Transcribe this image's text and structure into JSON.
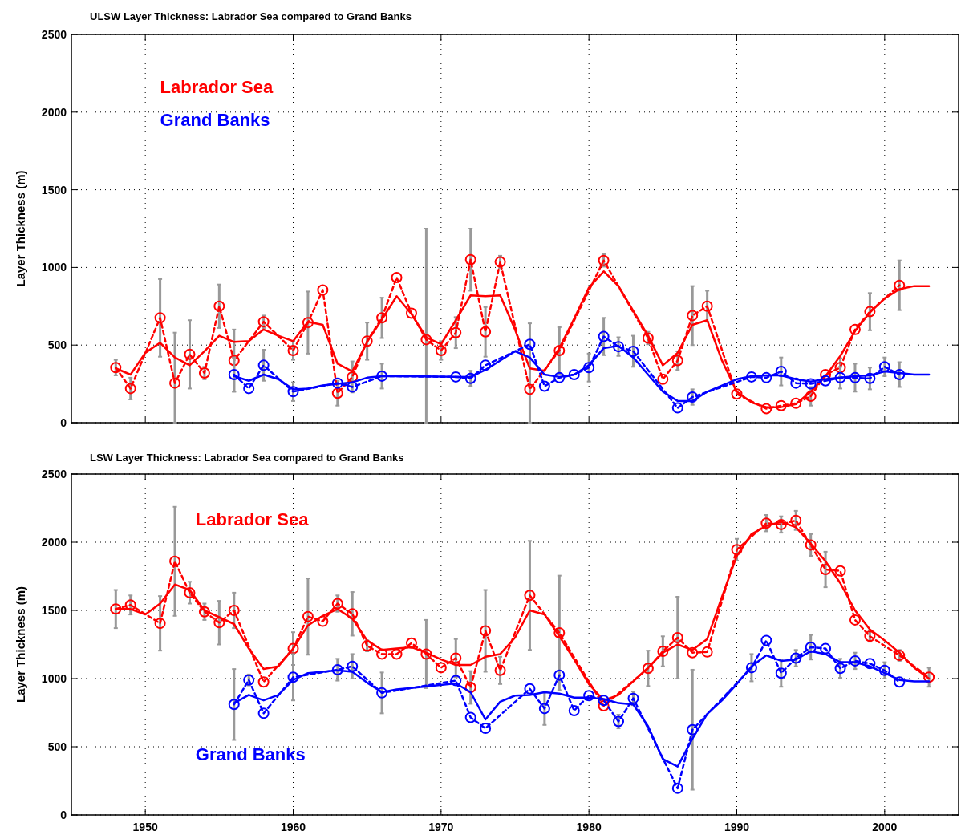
{
  "chart_data": [
    {
      "type": "line",
      "title": "ULSW Layer Thickness: Labrador Sea compared to Grand Banks",
      "ylabel": "Layer Thickness (m)",
      "xlim": [
        1945,
        2005
      ],
      "xticks": [
        1950,
        1960,
        1970,
        1980,
        1990,
        2000
      ],
      "ylim": [
        0,
        2500
      ],
      "yticks": [
        0,
        500,
        1000,
        1500,
        2000,
        2500
      ],
      "grid": true,
      "tick_labels": "y",
      "series": [
        {
          "name": "Labrador Sea",
          "color": "#ff0000",
          "marker": "circle",
          "line_style": "dashed",
          "x": [
            1948,
            1949,
            1951,
            1952,
            1953,
            1954,
            1955,
            1956,
            1958,
            1960,
            1961,
            1962,
            1963,
            1964,
            1965,
            1966,
            1967,
            1968,
            1969,
            1970,
            1971,
            1972,
            1973,
            1974,
            1976,
            1978,
            1981,
            1984,
            1985,
            1986,
            1987,
            1988,
            1990,
            1992,
            1993,
            1994,
            1995,
            1996,
            1997,
            1998,
            1999,
            2001
          ],
          "values": [
            355,
            220,
            675,
            255,
            440,
            320,
            750,
            400,
            650,
            465,
            645,
            855,
            190,
            295,
            525,
            675,
            935,
            705,
            535,
            465,
            580,
            1050,
            585,
            1035,
            215,
            465,
            1045,
            545,
            280,
            400,
            690,
            750,
            185,
            90,
            110,
            125,
            170,
            310,
            355,
            600,
            715,
            885
          ],
          "errors": [
            50,
            70,
            250,
            [
              0,
              580
            ],
            220,
            40,
            140,
            200,
            40,
            60,
            200,
            null,
            80,
            100,
            120,
            130,
            null,
            null,
            [
              0,
              1250
            ],
            60,
            100,
            200,
            160,
            40,
            [
              0,
              640
            ],
            150,
            40,
            40,
            null,
            60,
            190,
            100,
            null,
            null,
            null,
            null,
            60,
            null,
            60,
            null,
            120,
            160
          ]
        },
        {
          "color": "#ff0000",
          "marker": "none",
          "line_style": "solid",
          "x": [
            1948,
            1949,
            1950,
            1951,
            1952,
            1953,
            1954,
            1955,
            1956,
            1957,
            1958,
            1959,
            1960,
            1961,
            1962,
            1963,
            1964,
            1965,
            1966,
            1967,
            1968,
            1969,
            1970,
            1971,
            1972,
            1973,
            1974,
            1975,
            1976,
            1977,
            1978,
            1979,
            1980,
            1981,
            1982,
            1983,
            1984,
            1985,
            1986,
            1987,
            1988,
            1989,
            1990,
            1991,
            1992,
            1993,
            1994,
            1995,
            1996,
            1997,
            1998,
            1999,
            2000,
            2001,
            2002,
            2003
          ],
          "values": [
            350,
            310,
            450,
            515,
            420,
            370,
            460,
            560,
            520,
            525,
            600,
            560,
            525,
            650,
            630,
            380,
            330,
            520,
            665,
            815,
            700,
            550,
            505,
            660,
            820,
            815,
            820,
            600,
            350,
            335,
            480,
            670,
            870,
            975,
            880,
            720,
            560,
            370,
            450,
            630,
            660,
            400,
            200,
            130,
            100,
            100,
            120,
            200,
            300,
            430,
            590,
            710,
            800,
            860,
            880,
            880
          ]
        },
        {
          "name": "Grand Banks",
          "color": "#0000ff",
          "marker": "circle",
          "line_style": "dashed",
          "x": [
            1956,
            1957,
            1958,
            1960,
            1963,
            1964,
            1966,
            1971,
            1972,
            1973,
            1976,
            1977,
            1978,
            1979,
            1980,
            1981,
            1982,
            1983,
            1986,
            1987,
            1991,
            1992,
            1993,
            1994,
            1995,
            1996,
            1997,
            1998,
            1999,
            2000,
            2001
          ],
          "values": [
            310,
            220,
            370,
            200,
            255,
            230,
            300,
            295,
            285,
            370,
            505,
            235,
            290,
            310,
            355,
            555,
            490,
            460,
            95,
            165,
            295,
            290,
            330,
            255,
            250,
            270,
            290,
            290,
            285,
            360,
            310
          ],
          "errors": [
            110,
            null,
            100,
            60,
            null,
            null,
            80,
            null,
            50,
            null,
            null,
            null,
            null,
            null,
            90,
            120,
            60,
            100,
            null,
            50,
            null,
            null,
            90,
            null,
            null,
            null,
            70,
            90,
            70,
            60,
            80
          ]
        },
        {
          "color": "#0000ff",
          "marker": "none",
          "line_style": "solid",
          "x": [
            1956,
            1957,
            1958,
            1959,
            1960,
            1961,
            1962,
            1963,
            1964,
            1965,
            1966,
            1967,
            1972,
            1973,
            1974,
            1975,
            1976,
            1977,
            1978,
            1979,
            1980,
            1981,
            1982,
            1983,
            1984,
            1985,
            1986,
            1987,
            1988,
            1989,
            1990,
            1991,
            1992,
            1993,
            1994,
            1995,
            1996,
            1997,
            1998,
            1999,
            2000,
            2001,
            2002,
            2003
          ],
          "values": [
            300,
            270,
            310,
            280,
            215,
            220,
            240,
            250,
            260,
            290,
            300,
            300,
            295,
            340,
            400,
            460,
            420,
            310,
            295,
            310,
            370,
            480,
            495,
            420,
            310,
            200,
            140,
            140,
            200,
            240,
            280,
            300,
            305,
            305,
            280,
            265,
            280,
            290,
            300,
            305,
            330,
            320,
            310,
            310
          ]
        }
      ]
    },
    {
      "type": "line",
      "title": "LSW Layer Thickness: Labrador Sea compared to Grand Banks",
      "ylabel": "Layer Thickness (m)",
      "xlim": [
        1945,
        2005
      ],
      "xticks": [
        1950,
        1960,
        1970,
        1980,
        1990,
        2000
      ],
      "ylim": [
        0,
        2500
      ],
      "yticks": [
        0,
        500,
        1000,
        1500,
        2000,
        2500
      ],
      "grid": true,
      "series": [
        {
          "name": "Labrador Sea",
          "color": "#ff0000",
          "marker": "circle",
          "line_style": "dashed",
          "x": [
            1948,
            1949,
            1951,
            1952,
            1953,
            1954,
            1955,
            1956,
            1958,
            1960,
            1961,
            1962,
            1963,
            1964,
            1965,
            1966,
            1967,
            1968,
            1969,
            1970,
            1971,
            1972,
            1973,
            1974,
            1976,
            1978,
            1981,
            1984,
            1985,
            1986,
            1987,
            1988,
            1990,
            1992,
            1993,
            1994,
            1995,
            1996,
            1997,
            1998,
            1999,
            2001,
            2003
          ],
          "values": [
            1510,
            1540,
            1405,
            1860,
            1630,
            1490,
            1410,
            1500,
            975,
            1220,
            1455,
            1420,
            1550,
            1475,
            1240,
            1180,
            1180,
            1260,
            1180,
            1080,
            1150,
            935,
            1350,
            1060,
            1610,
            1335,
            800,
            1075,
            1200,
            1300,
            1190,
            1195,
            1945,
            2140,
            2130,
            2160,
            1980,
            1800,
            1790,
            1430,
            1310,
            1170,
            1010
          ],
          "errors": [
            140,
            70,
            200,
            400,
            80,
            60,
            160,
            130,
            null,
            120,
            280,
            null,
            60,
            160,
            40,
            null,
            null,
            null,
            250,
            null,
            140,
            120,
            300,
            100,
            400,
            420,
            null,
            130,
            110,
            300,
            null,
            null,
            80,
            60,
            60,
            70,
            80,
            130,
            null,
            null,
            40,
            40,
            70
          ]
        },
        {
          "color": "#ff0000",
          "marker": "none",
          "line_style": "solid",
          "x": [
            1948,
            1949,
            1950,
            1951,
            1952,
            1953,
            1954,
            1955,
            1956,
            1957,
            1958,
            1959,
            1960,
            1961,
            1962,
            1963,
            1964,
            1965,
            1966,
            1967,
            1968,
            1969,
            1970,
            1971,
            1972,
            1973,
            1974,
            1975,
            1976,
            1977,
            1978,
            1979,
            1980,
            1981,
            1982,
            1983,
            1984,
            1985,
            1986,
            1987,
            1988,
            1989,
            1990,
            1991,
            1992,
            1993,
            1994,
            1995,
            1996,
            1997,
            1998,
            1999,
            2000,
            2001,
            2002,
            2003
          ],
          "values": [
            1510,
            1510,
            1470,
            1550,
            1690,
            1650,
            1500,
            1450,
            1400,
            1220,
            1070,
            1090,
            1220,
            1390,
            1460,
            1510,
            1440,
            1280,
            1210,
            1220,
            1230,
            1190,
            1140,
            1100,
            1100,
            1160,
            1180,
            1300,
            1500,
            1470,
            1310,
            1140,
            960,
            840,
            880,
            980,
            1080,
            1190,
            1250,
            1210,
            1290,
            1600,
            1900,
            2060,
            2120,
            2150,
            2110,
            1990,
            1860,
            1700,
            1500,
            1360,
            1280,
            1190,
            1080,
            1000
          ]
        },
        {
          "name": "Grand Banks",
          "color": "#0000ff",
          "marker": "circle",
          "line_style": "dashed",
          "x": [
            1956,
            1957,
            1958,
            1960,
            1963,
            1964,
            1966,
            1971,
            1972,
            1973,
            1976,
            1977,
            1978,
            1979,
            1980,
            1981,
            1982,
            1983,
            1986,
            1987,
            1991,
            1992,
            1993,
            1994,
            1995,
            1996,
            1997,
            1998,
            1999,
            2000,
            2001
          ],
          "values": [
            810,
            990,
            745,
            1010,
            1065,
            1090,
            895,
            985,
            715,
            635,
            925,
            780,
            1025,
            765,
            875,
            840,
            685,
            855,
            195,
            625,
            1080,
            1280,
            1040,
            1150,
            1230,
            1220,
            1075,
            1130,
            1110,
            1060,
            975
          ],
          "errors": [
            260,
            40,
            null,
            170,
            80,
            90,
            150,
            null,
            null,
            null,
            null,
            120,
            null,
            null,
            null,
            null,
            50,
            50,
            null,
            440,
            100,
            null,
            100,
            60,
            90,
            null,
            70,
            60,
            null,
            60,
            null
          ]
        },
        {
          "color": "#0000ff",
          "marker": "none",
          "line_style": "solid",
          "x": [
            1956,
            1957,
            1958,
            1959,
            1960,
            1961,
            1962,
            1963,
            1964,
            1965,
            1966,
            1967,
            1971,
            1972,
            1973,
            1974,
            1975,
            1976,
            1977,
            1978,
            1979,
            1980,
            1981,
            1982,
            1983,
            1984,
            1985,
            1986,
            1987,
            1988,
            1989,
            1990,
            1991,
            1992,
            1993,
            1994,
            1995,
            1996,
            1997,
            1998,
            1999,
            2000,
            2001,
            2002,
            2003
          ],
          "values": [
            820,
            880,
            840,
            880,
            990,
            1040,
            1050,
            1060,
            1050,
            970,
            900,
            920,
            965,
            900,
            700,
            830,
            875,
            880,
            900,
            890,
            860,
            860,
            850,
            820,
            810,
            650,
            410,
            355,
            560,
            740,
            840,
            960,
            1090,
            1170,
            1130,
            1140,
            1200,
            1180,
            1120,
            1120,
            1090,
            1040,
            990,
            980,
            980
          ]
        }
      ]
    }
  ]
}
